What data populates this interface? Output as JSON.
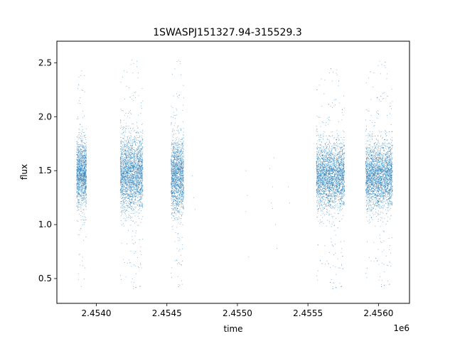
{
  "chart_data": {
    "type": "scatter",
    "title": "1SWASPJ151327.94-315529.3",
    "xlabel": "time",
    "ylabel": "flux",
    "x_offset_label": "1e6",
    "xlim": [
      2453720,
      2456220
    ],
    "ylim": [
      0.27,
      2.7
    ],
    "x_ticks": [
      2454000,
      2454500,
      2455000,
      2455500,
      2456000
    ],
    "x_tick_labels": [
      "2.4540",
      "2.4545",
      "2.4550",
      "2.4555",
      "2.4560"
    ],
    "y_ticks": [
      0.5,
      1.0,
      1.5,
      2.0,
      2.5
    ],
    "y_tick_labels": [
      "0.5",
      "1.0",
      "1.5",
      "2.0",
      "2.5"
    ],
    "grid": false,
    "marker_color": "#1f77b4",
    "clusters": [
      {
        "x_range": [
          2453860,
          2453930
        ],
        "center": 1.47,
        "core_sd": 0.15,
        "y_range": [
          0.42,
          2.43
        ],
        "count": 1400
      },
      {
        "x_range": [
          2454170,
          2454330
        ],
        "center": 1.47,
        "core_sd": 0.17,
        "y_range": [
          0.38,
          2.55
        ],
        "count": 2600
      },
      {
        "x_range": [
          2454530,
          2454620
        ],
        "center": 1.45,
        "core_sd": 0.17,
        "y_range": [
          0.4,
          2.58
        ],
        "count": 1700
      },
      {
        "x_range": [
          2455560,
          2455760
        ],
        "center": 1.45,
        "core_sd": 0.15,
        "y_range": [
          0.38,
          2.47
        ],
        "count": 3000
      },
      {
        "x_range": [
          2455910,
          2456100
        ],
        "center": 1.45,
        "core_sd": 0.15,
        "y_range": [
          0.4,
          2.54
        ],
        "count": 3000
      }
    ],
    "sparse_points": [
      {
        "x": 2454680,
        "y": 1.45
      },
      {
        "x": 2454690,
        "y": 1.25
      },
      {
        "x": 2454700,
        "y": 1.14
      },
      {
        "x": 2455060,
        "y": 1.5
      },
      {
        "x": 2455070,
        "y": 1.27
      },
      {
        "x": 2455060,
        "y": 1.12
      },
      {
        "x": 2455080,
        "y": 0.7
      },
      {
        "x": 2455230,
        "y": 1.52
      },
      {
        "x": 2455250,
        "y": 1.35
      },
      {
        "x": 2455260,
        "y": 1.62
      },
      {
        "x": 2455240,
        "y": 1.2
      },
      {
        "x": 2455250,
        "y": 1.15
      },
      {
        "x": 2455270,
        "y": 1.0
      },
      {
        "x": 2455280,
        "y": 0.78
      },
      {
        "x": 2455360,
        "y": 1.35
      },
      {
        "x": 2455370,
        "y": 1.2
      }
    ]
  }
}
